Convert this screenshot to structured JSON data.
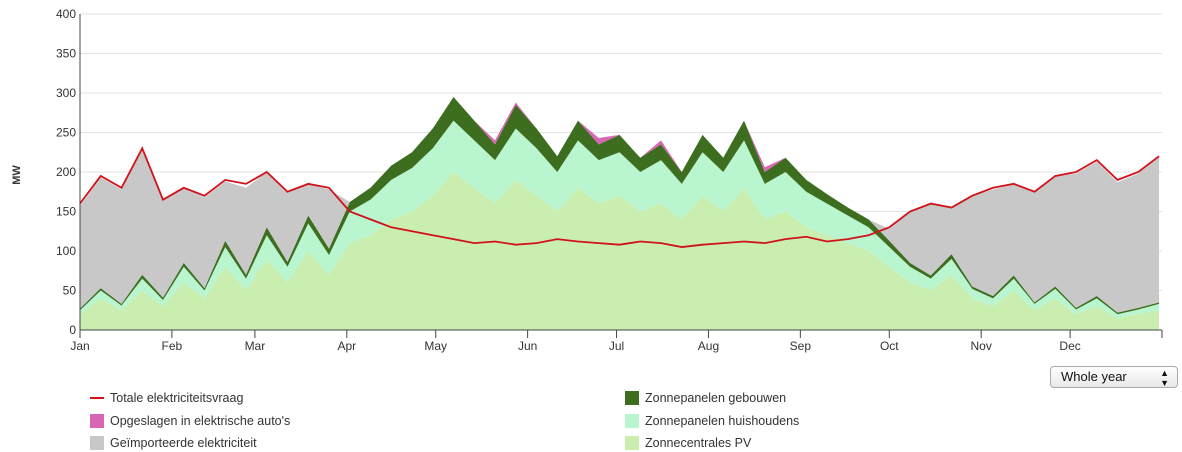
{
  "chart_data": {
    "type": "stacked_area_line",
    "y_label": "MW",
    "x": [
      0,
      7,
      14,
      21,
      28,
      35,
      42,
      49,
      56,
      63,
      70,
      77,
      84,
      91,
      98,
      105,
      112,
      119,
      126,
      133,
      140,
      147,
      154,
      161,
      168,
      175,
      182,
      189,
      196,
      203,
      210,
      217,
      224,
      231,
      238,
      245,
      252,
      259,
      266,
      273,
      280,
      287,
      294,
      301,
      308,
      315,
      322,
      329,
      336,
      343,
      350,
      357,
      364
    ],
    "xlim": [
      0,
      365
    ],
    "xticks": [
      {
        "value": 0,
        "label": "Jan"
      },
      {
        "value": 31,
        "label": "Feb"
      },
      {
        "value": 59,
        "label": "Mar"
      },
      {
        "value": 90,
        "label": "Apr"
      },
      {
        "value": 120,
        "label": "May"
      },
      {
        "value": 151,
        "label": "Jun"
      },
      {
        "value": 181,
        "label": "Jul"
      },
      {
        "value": 212,
        "label": "Aug"
      },
      {
        "value": 243,
        "label": "Sep"
      },
      {
        "value": 273,
        "label": "Oct"
      },
      {
        "value": 304,
        "label": "Nov"
      },
      {
        "value": 334,
        "label": "Dec"
      }
    ],
    "ylim": [
      0,
      400
    ],
    "yticks": [
      0,
      50,
      100,
      150,
      200,
      250,
      300,
      350,
      400
    ],
    "grid": true,
    "series": [
      {
        "name": "Zonnecentrales PV",
        "color": "#c9eeb0",
        "kind": "area",
        "values": [
          20,
          40,
          25,
          50,
          30,
          60,
          40,
          80,
          50,
          90,
          60,
          100,
          70,
          110,
          120,
          140,
          150,
          170,
          200,
          180,
          160,
          190,
          170,
          150,
          180,
          160,
          170,
          150,
          160,
          140,
          170,
          150,
          180,
          140,
          150,
          130,
          120,
          110,
          100,
          80,
          60,
          50,
          70,
          40,
          30,
          50,
          25,
          40,
          20,
          30,
          15,
          20,
          25
        ]
      },
      {
        "name": "Zonnepanelen huishoudens",
        "color": "#b9f5cf",
        "kind": "area",
        "values": [
          5,
          10,
          6,
          15,
          8,
          20,
          10,
          25,
          15,
          30,
          20,
          35,
          25,
          40,
          45,
          50,
          55,
          60,
          65,
          60,
          55,
          65,
          60,
          50,
          60,
          55,
          55,
          50,
          55,
          45,
          55,
          50,
          60,
          45,
          50,
          45,
          40,
          35,
          30,
          25,
          20,
          15,
          20,
          12,
          10,
          15,
          8,
          12,
          6,
          10,
          5,
          6,
          8
        ]
      },
      {
        "name": "Zonnepanelen gebouwen",
        "color": "#3d6e1f",
        "kind": "area",
        "values": [
          2,
          3,
          2,
          5,
          3,
          5,
          3,
          8,
          5,
          10,
          6,
          10,
          8,
          12,
          15,
          18,
          20,
          25,
          30,
          25,
          20,
          30,
          25,
          20,
          25,
          20,
          22,
          18,
          20,
          15,
          22,
          18,
          25,
          15,
          18,
          15,
          12,
          10,
          10,
          8,
          5,
          4,
          6,
          3,
          3,
          4,
          2,
          3,
          2,
          3,
          2,
          2,
          2
        ]
      },
      {
        "name": "Opgeslagen in elektrische auto's",
        "color": "#d767b4",
        "kind": "area",
        "values": [
          0,
          0,
          0,
          0,
          0,
          0,
          0,
          0,
          0,
          0,
          0,
          0,
          0,
          0,
          0,
          0,
          0,
          0,
          0,
          0,
          5,
          3,
          0,
          0,
          0,
          8,
          0,
          0,
          5,
          0,
          0,
          0,
          0,
          6,
          0,
          0,
          0,
          0,
          0,
          0,
          0,
          0,
          0,
          0,
          0,
          0,
          0,
          0,
          0,
          0,
          0,
          0,
          0
        ]
      },
      {
        "name": "Geïmporteerde elektriciteit",
        "color": "#c8c8c8",
        "kind": "area",
        "values": [
          130,
          140,
          145,
          160,
          125,
          95,
          115,
          75,
          110,
          70,
          90,
          40,
          75,
          0,
          0,
          0,
          0,
          0,
          0,
          0,
          0,
          0,
          0,
          0,
          0,
          0,
          0,
          0,
          0,
          0,
          0,
          0,
          0,
          0,
          0,
          0,
          0,
          0,
          0,
          15,
          65,
          90,
          60,
          115,
          135,
          115,
          140,
          140,
          170,
          170,
          165,
          170,
          185
        ]
      },
      {
        "name": "Totale elektriciteitsvraag",
        "color": "#d0121b",
        "kind": "line",
        "values": [
          160,
          195,
          180,
          230,
          165,
          180,
          170,
          190,
          185,
          200,
          175,
          185,
          180,
          150,
          140,
          130,
          125,
          120,
          115,
          110,
          112,
          108,
          110,
          115,
          112,
          110,
          108,
          112,
          110,
          105,
          108,
          110,
          112,
          110,
          115,
          118,
          112,
          115,
          120,
          130,
          150,
          160,
          155,
          170,
          180,
          185,
          175,
          195,
          200,
          215,
          190,
          200,
          220
        ]
      }
    ]
  },
  "controls": {
    "period": "Whole year"
  }
}
